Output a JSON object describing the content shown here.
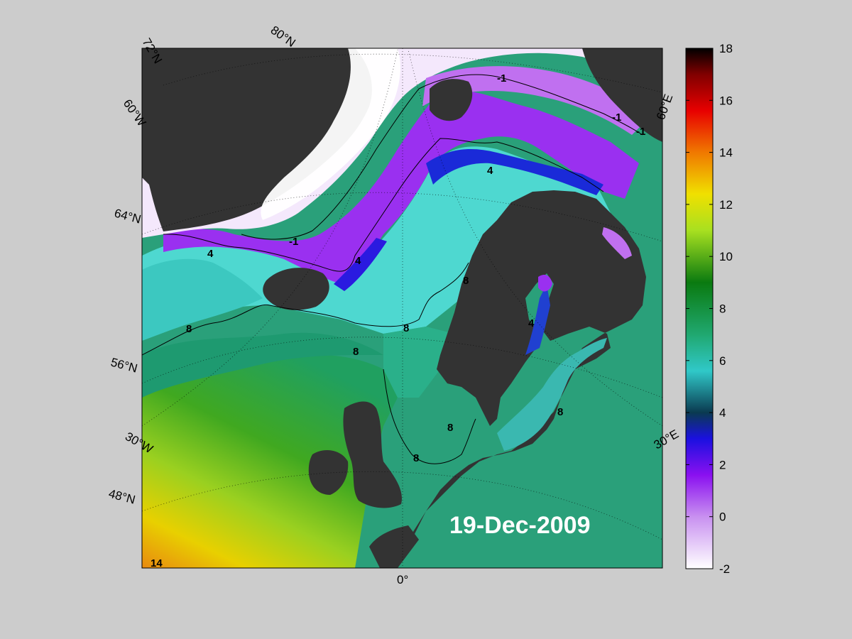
{
  "map": {
    "date": "19-Dec-2009",
    "lat_labels": [
      "72°N",
      "80°N",
      "64°N",
      "56°N",
      "48°N"
    ],
    "lon_labels": [
      "60°W",
      "30°W",
      "0°",
      "30°E",
      "60°E"
    ],
    "contour_labels": [
      "-1",
      "-1",
      "-1",
      "-1",
      "4",
      "4",
      "4",
      "4",
      "8",
      "8",
      "8",
      "8",
      "8",
      "8",
      "8",
      "14"
    ]
  },
  "colorbar": {
    "min": -2,
    "max": 18,
    "ticks": [
      "18",
      "16",
      "14",
      "12",
      "10",
      "8",
      "6",
      "4",
      "2",
      "0",
      "-2"
    ],
    "colors": [
      "#ffffff",
      "#c890f0",
      "#8a10f0",
      "#1a10e0",
      "#0a3a50",
      "#30c8c8",
      "#20a870",
      "#0a7a10",
      "#a8e020",
      "#f0d000",
      "#f07800",
      "#e80000",
      "#800000",
      "#000000"
    ]
  }
}
